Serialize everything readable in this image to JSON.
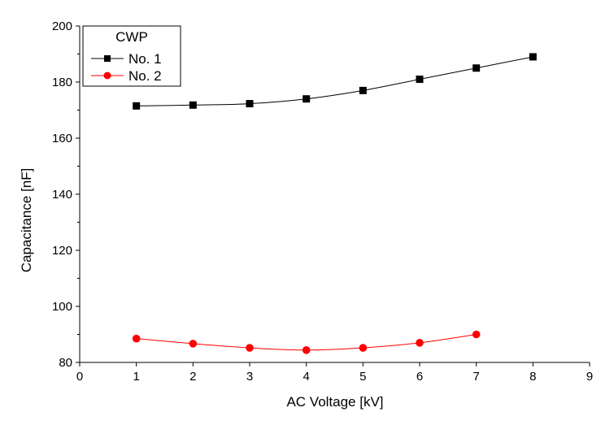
{
  "chart_data": {
    "type": "line",
    "xlabel": "AC Voltage [kV]",
    "ylabel": "Capacitance [nF]",
    "xlim": [
      0,
      9
    ],
    "ylim": [
      80,
      200
    ],
    "xticks": [
      0,
      1,
      2,
      3,
      4,
      5,
      6,
      7,
      8,
      9
    ],
    "yticks": [
      80,
      100,
      120,
      140,
      160,
      180,
      200
    ],
    "grid": false,
    "legend": {
      "title": "CWP",
      "placement": "top-left"
    },
    "series": [
      {
        "name": "No. 1",
        "color": "#000000",
        "marker": "square",
        "x": [
          1,
          2,
          3,
          4,
          5,
          6,
          7,
          8
        ],
        "values": [
          171.5,
          171.8,
          172.3,
          174.0,
          177.0,
          181.0,
          185.0,
          189.0
        ]
      },
      {
        "name": "No. 2",
        "color": "#ff0000",
        "marker": "circle",
        "x": [
          1,
          2,
          3,
          4,
          5,
          6,
          7
        ],
        "values": [
          88.5,
          86.7,
          85.2,
          84.4,
          85.2,
          87.0,
          90.0
        ]
      }
    ]
  }
}
